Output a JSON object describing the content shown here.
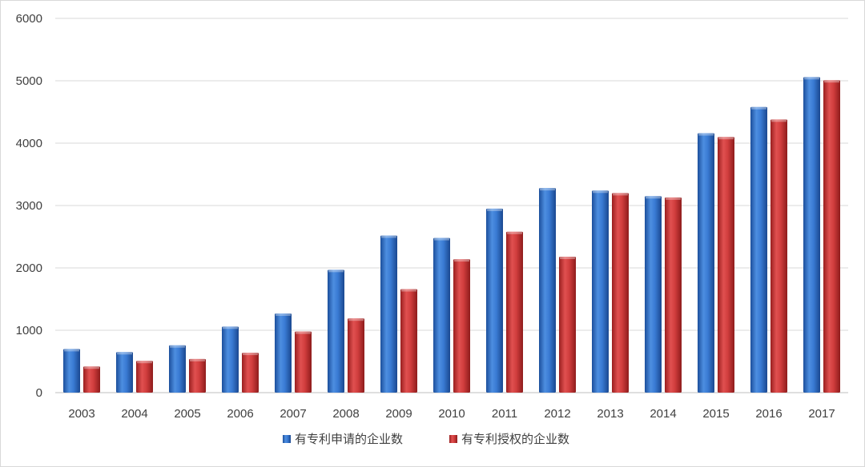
{
  "chart_data": {
    "type": "bar",
    "title": "",
    "xlabel": "",
    "ylabel": "",
    "categories": [
      "2003",
      "2004",
      "2005",
      "2006",
      "2007",
      "2008",
      "2009",
      "2010",
      "2011",
      "2012",
      "2013",
      "2014",
      "2015",
      "2016",
      "2017"
    ],
    "series": [
      {
        "name": "有专利申请的企业数",
        "color": "#2e6fc7",
        "values": [
          700,
          650,
          760,
          1060,
          1270,
          1970,
          2520,
          2480,
          2950,
          3280,
          3240,
          3150,
          4160,
          4580,
          5060
        ]
      },
      {
        "name": "有专利授权的企业数",
        "color": "#c93434",
        "values": [
          420,
          510,
          540,
          640,
          980,
          1190,
          1660,
          2140,
          2580,
          2180,
          3200,
          3130,
          4100,
          4380,
          5010
        ]
      }
    ],
    "ylim": [
      0,
      6000
    ],
    "yticks": [
      0,
      1000,
      2000,
      3000,
      4000,
      5000,
      6000
    ],
    "grid": true,
    "legend": "bottom-center"
  }
}
